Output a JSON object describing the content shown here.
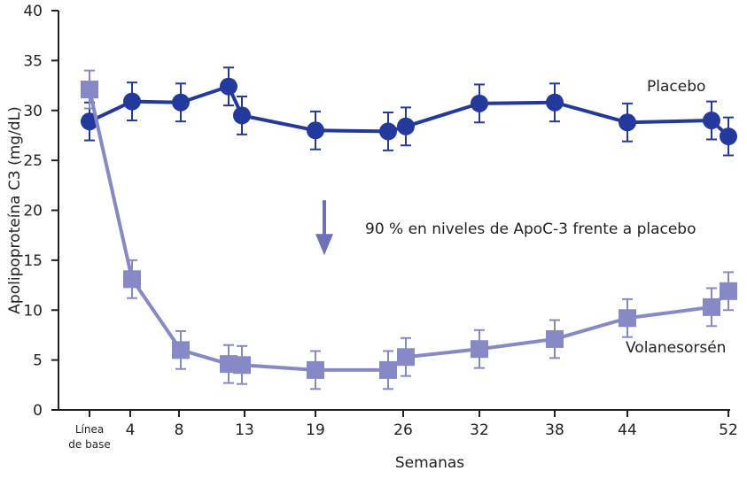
{
  "chart_data": {
    "type": "line",
    "title": "",
    "xlabel": "Semanas",
    "ylabel": "Apolipoproteína C3 (mg/dL)",
    "ylim": [
      0,
      40
    ],
    "yticks": [
      0,
      5,
      10,
      15,
      20,
      25,
      30,
      35,
      40
    ],
    "xticks": [
      {
        "x": 0,
        "label": [
          "Línea",
          "de base"
        ]
      },
      {
        "x": 4,
        "label": "4"
      },
      {
        "x": 8,
        "label": "8"
      },
      {
        "x": 13,
        "label": "13"
      },
      {
        "x": 19,
        "label": "19"
      },
      {
        "x": 26,
        "label": "26"
      },
      {
        "x": 32,
        "label": "32"
      },
      {
        "x": 38,
        "label": "38"
      },
      {
        "x": 44,
        "label": "44"
      },
      {
        "x": 52,
        "label": "52"
      }
    ],
    "grid": false,
    "colors": {
      "placebo": "#23399b",
      "volanesorsen": "#8789c6",
      "arrow": "#6e70b8"
    },
    "series": [
      {
        "name": "Placebo",
        "marker": "circle",
        "points": [
          {
            "x": 0,
            "y": 28.9,
            "err": 1.9
          },
          {
            "x": 4,
            "y": 30.9,
            "err": 1.9
          },
          {
            "x": 8,
            "y": 30.8,
            "err": 1.9
          },
          {
            "x": 12,
            "y": 32.4,
            "err": 1.9
          },
          {
            "x": 13,
            "y": 29.5,
            "err": 1.9
          },
          {
            "x": 19,
            "y": 28.0,
            "err": 1.9
          },
          {
            "x": 25,
            "y": 27.9,
            "err": 1.9
          },
          {
            "x": 26,
            "y": 28.4,
            "err": 1.9
          },
          {
            "x": 32,
            "y": 30.7,
            "err": 1.9
          },
          {
            "x": 38,
            "y": 30.8,
            "err": 1.9
          },
          {
            "x": 44,
            "y": 28.8,
            "err": 1.9
          },
          {
            "x": 51,
            "y": 29.0,
            "err": 1.9
          },
          {
            "x": 52,
            "y": 27.4,
            "err": 1.9
          }
        ]
      },
      {
        "name": "Volanesorsén",
        "marker": "square",
        "points": [
          {
            "x": 0,
            "y": 32.1,
            "err": 1.9
          },
          {
            "x": 4,
            "y": 13.1,
            "err": 1.9
          },
          {
            "x": 8,
            "y": 6.0,
            "err": 1.9
          },
          {
            "x": 12,
            "y": 4.6,
            "err": 1.9
          },
          {
            "x": 13,
            "y": 4.5,
            "err": 1.9
          },
          {
            "x": 19,
            "y": 4.0,
            "err": 1.9
          },
          {
            "x": 25,
            "y": 4.0,
            "err": 1.9
          },
          {
            "x": 26,
            "y": 5.3,
            "err": 1.9
          },
          {
            "x": 32,
            "y": 6.1,
            "err": 1.9
          },
          {
            "x": 38,
            "y": 7.1,
            "err": 1.9
          },
          {
            "x": 44,
            "y": 9.2,
            "err": 1.9
          },
          {
            "x": 51,
            "y": 10.3,
            "err": 1.9
          },
          {
            "x": 52,
            "y": 11.9,
            "err": 1.9
          }
        ]
      }
    ],
    "annotations": [
      {
        "text": "90 % en niveles de ApoC-3 frente a placebo",
        "arrow": "down",
        "x": 19,
        "y_from": 21,
        "y_to": 15.5
      }
    ]
  }
}
